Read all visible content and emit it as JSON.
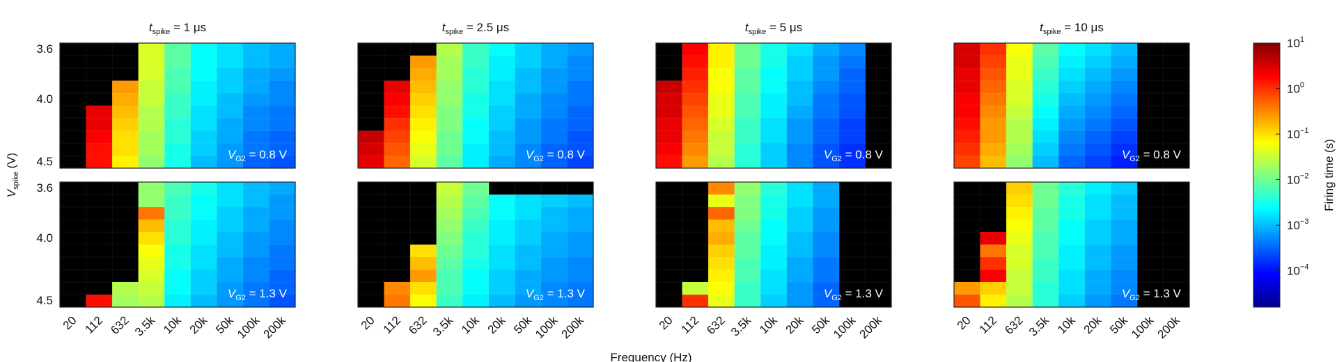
{
  "chart_data": {
    "type": "heatmap",
    "x_label": "Frequency (Hz)",
    "y_label_main": "V",
    "y_label_sub": "spike",
    "y_label_unit": " (V)",
    "x_categories": [
      "20",
      "112",
      "632",
      "3.5k",
      "10k",
      "20k",
      "50k",
      "100k",
      "200k"
    ],
    "y_tick_labels": [
      "3.6",
      "4.0",
      "4.5"
    ],
    "y_rows": 10,
    "column_titles": [
      {
        "main": "t",
        "sub": "spike",
        "rest": " = 1 μs"
      },
      {
        "main": "t",
        "sub": "spike",
        "rest": " = 2.5 μs"
      },
      {
        "main": "t",
        "sub": "spike",
        "rest": " = 5 μs"
      },
      {
        "main": "t",
        "sub": "spike",
        "rest": " = 10 μs"
      }
    ],
    "row_annotations": [
      {
        "main": "V",
        "sub": "G2",
        "rest": " = 0.8 V"
      },
      {
        "main": "V",
        "sub": "G2",
        "rest": " = 1.3 V"
      }
    ],
    "colorbar": {
      "label": "Firing time (s)",
      "scale": "log",
      "range_log10": [
        -4.8,
        1
      ],
      "ticks": [
        {
          "base": "10",
          "exp": "1"
        },
        {
          "base": "10",
          "exp": "0"
        },
        {
          "base": "10",
          "exp": "−1"
        },
        {
          "base": "10",
          "exp": "−2"
        },
        {
          "base": "10",
          "exp": "−3"
        },
        {
          "base": "10",
          "exp": "−4"
        }
      ],
      "tick_values_log10": [
        1,
        0,
        -1,
        -2,
        -3,
        -4
      ]
    },
    "panels_log10_firing_time": [
      [
        [
          null,
          null,
          null,
          -1.4,
          -2.1,
          -2.6,
          -2.8,
          -3.0,
          -3.1
        ],
        [
          null,
          null,
          null,
          -1.4,
          -2.1,
          -2.6,
          -2.8,
          -3.0,
          -3.1
        ],
        [
          null,
          null,
          null,
          -1.4,
          -2.2,
          -2.6,
          -2.9,
          -3.1,
          -3.2
        ],
        [
          null,
          null,
          -0.6,
          -1.5,
          -2.2,
          -2.7,
          -2.9,
          -3.1,
          -3.3
        ],
        [
          null,
          null,
          -0.7,
          -1.5,
          -2.3,
          -2.7,
          -3.0,
          -3.2,
          -3.3
        ],
        [
          null,
          0.4,
          -0.8,
          -1.6,
          -2.3,
          -2.8,
          -3.0,
          -3.3,
          -3.4
        ],
        [
          null,
          0.4,
          -0.9,
          -1.6,
          -2.4,
          -2.8,
          -3.1,
          -3.3,
          -3.4
        ],
        [
          null,
          0.3,
          -1.0,
          -1.7,
          -2.4,
          -2.9,
          -3.1,
          -3.4,
          -3.5
        ],
        [
          null,
          0.2,
          -1.0,
          -1.7,
          -2.5,
          -2.9,
          -3.2,
          -3.4,
          -3.5
        ],
        [
          null,
          0.2,
          -1.1,
          -1.8,
          -2.5,
          -3.0,
          -3.2,
          -3.5,
          -3.6
        ]
      ],
      [
        [
          null,
          null,
          null,
          -1.6,
          -2.3,
          -2.6,
          -2.9,
          -3.1,
          -3.2
        ],
        [
          null,
          null,
          -0.6,
          -1.7,
          -2.3,
          -2.7,
          -2.9,
          -3.1,
          -3.3
        ],
        [
          null,
          null,
          -0.7,
          -1.7,
          -2.4,
          -2.7,
          -3.0,
          -3.2,
          -3.3
        ],
        [
          null,
          0.4,
          -0.8,
          -1.8,
          -2.4,
          -2.8,
          -3.0,
          -3.2,
          -3.4
        ],
        [
          null,
          0.3,
          -0.9,
          -1.8,
          -2.5,
          -2.8,
          -3.1,
          -3.3,
          -3.4
        ],
        [
          null,
          0.2,
          -1.0,
          -1.9,
          -2.5,
          -2.9,
          -3.1,
          -3.3,
          -3.5
        ],
        [
          null,
          0.0,
          -1.1,
          -1.9,
          -2.6,
          -2.9,
          -3.2,
          -3.4,
          -3.5
        ],
        [
          0.6,
          -0.1,
          -1.2,
          -2.0,
          -2.6,
          -3.0,
          -3.2,
          -3.4,
          -3.6
        ],
        [
          0.5,
          -0.2,
          -1.3,
          -2.0,
          -2.7,
          -3.0,
          -3.3,
          -3.5,
          -3.6
        ],
        [
          0.4,
          -0.3,
          -1.4,
          -2.1,
          -2.7,
          -3.1,
          -3.3,
          -3.5,
          -3.7
        ]
      ],
      [
        [
          null,
          0.3,
          -1.1,
          -2.0,
          -2.5,
          -2.8,
          -3.1,
          -3.3,
          null
        ],
        [
          null,
          0.2,
          -1.1,
          -2.0,
          -2.5,
          -2.9,
          -3.2,
          -3.4,
          null
        ],
        [
          null,
          0.1,
          -1.2,
          -2.1,
          -2.6,
          -2.9,
          -3.2,
          -3.5,
          null
        ],
        [
          0.6,
          0.0,
          -1.2,
          -2.1,
          -2.6,
          -3.0,
          -3.3,
          -3.5,
          null
        ],
        [
          0.5,
          -0.1,
          -1.3,
          -2.2,
          -2.7,
          -3.0,
          -3.4,
          -3.6,
          null
        ],
        [
          0.5,
          -0.2,
          -1.3,
          -2.2,
          -2.7,
          -3.1,
          -3.4,
          -3.6,
          null
        ],
        [
          0.4,
          -0.3,
          -1.4,
          -2.3,
          -2.8,
          -3.2,
          -3.5,
          -3.7,
          null
        ],
        [
          0.4,
          -0.4,
          -1.5,
          -2.3,
          -2.8,
          -3.2,
          -3.5,
          -3.7,
          null
        ],
        [
          0.3,
          -0.5,
          -1.5,
          -2.4,
          -2.9,
          -3.3,
          -3.6,
          -3.8,
          null
        ],
        [
          0.2,
          -0.6,
          -1.6,
          -2.4,
          -2.9,
          -3.3,
          -3.6,
          -3.8,
          null
        ]
      ],
      [
        [
          0.5,
          0.0,
          -1.2,
          -2.1,
          -2.6,
          -2.8,
          -3.0,
          null,
          null
        ],
        [
          0.5,
          -0.1,
          -1.3,
          -2.2,
          -2.7,
          -2.9,
          -3.1,
          null,
          null
        ],
        [
          0.4,
          -0.2,
          -1.3,
          -2.3,
          -2.8,
          -3.0,
          -3.2,
          null,
          null
        ],
        [
          0.4,
          -0.3,
          -1.4,
          -2.4,
          -2.9,
          -3.1,
          -3.3,
          null,
          null
        ],
        [
          0.3,
          -0.4,
          -1.4,
          -2.5,
          -3.0,
          -3.2,
          -3.4,
          null,
          null
        ],
        [
          0.3,
          -0.5,
          -1.5,
          -2.6,
          -3.1,
          -3.3,
          -3.5,
          null,
          null
        ],
        [
          0.2,
          -0.6,
          -1.6,
          -2.7,
          -3.2,
          -3.4,
          -3.6,
          null,
          null
        ],
        [
          0.1,
          -0.6,
          -1.6,
          -2.8,
          -3.3,
          -3.5,
          -3.7,
          null,
          null
        ],
        [
          0.0,
          -0.7,
          -1.7,
          -2.9,
          -3.4,
          -3.6,
          -3.8,
          null,
          null
        ],
        [
          -0.1,
          -0.8,
          -1.8,
          -3.0,
          -3.5,
          -3.7,
          -3.9,
          null,
          null
        ]
      ],
      [
        [
          null,
          null,
          null,
          -1.8,
          -2.2,
          -2.5,
          -2.8,
          -3.0,
          -3.1
        ],
        [
          null,
          null,
          null,
          -1.8,
          -2.3,
          -2.6,
          -2.8,
          -3.0,
          -3.2
        ],
        [
          null,
          null,
          null,
          -0.4,
          -2.3,
          -2.6,
          -2.9,
          -3.1,
          -3.2
        ],
        [
          null,
          null,
          null,
          -0.8,
          -2.4,
          -2.7,
          -2.9,
          -3.1,
          -3.3
        ],
        [
          null,
          null,
          null,
          -1.0,
          -2.4,
          -2.7,
          -3.0,
          -3.2,
          -3.3
        ],
        [
          null,
          null,
          null,
          -1.2,
          -2.5,
          -2.8,
          -3.0,
          -3.2,
          -3.4
        ],
        [
          null,
          null,
          null,
          -1.3,
          -2.5,
          -2.8,
          -3.1,
          -3.3,
          -3.4
        ],
        [
          null,
          null,
          null,
          -1.4,
          -2.6,
          -2.9,
          -3.1,
          -3.3,
          -3.5
        ],
        [
          null,
          null,
          -1.6,
          -1.5,
          -2.6,
          -2.9,
          -3.2,
          -3.4,
          -3.5
        ],
        [
          null,
          0.2,
          -1.7,
          -1.6,
          -2.7,
          -3.0,
          -3.2,
          -3.4,
          -3.6
        ]
      ],
      [
        [
          null,
          null,
          null,
          -1.5,
          -2.0,
          null,
          null,
          null,
          null
        ],
        [
          null,
          null,
          null,
          -1.6,
          -2.1,
          -2.6,
          -2.8,
          -2.9,
          -3.0
        ],
        [
          null,
          null,
          null,
          -1.7,
          -2.2,
          -2.6,
          -2.8,
          -3.0,
          -3.1
        ],
        [
          null,
          null,
          null,
          -1.8,
          -2.3,
          -2.7,
          -2.9,
          -3.0,
          -3.1
        ],
        [
          null,
          null,
          null,
          -1.9,
          -2.4,
          -2.7,
          -2.9,
          -3.1,
          -3.2
        ],
        [
          null,
          null,
          -1.0,
          -2.0,
          -2.4,
          -2.8,
          -3.0,
          -3.1,
          -3.2
        ],
        [
          null,
          null,
          -0.8,
          -2.1,
          -2.5,
          -2.8,
          -3.0,
          -3.2,
          -3.3
        ],
        [
          null,
          null,
          -0.6,
          -2.2,
          -2.6,
          -2.9,
          -3.1,
          -3.2,
          -3.3
        ],
        [
          null,
          -0.5,
          -1.0,
          -2.2,
          -2.6,
          -2.9,
          -3.1,
          -3.3,
          -3.4
        ],
        [
          null,
          -0.4,
          -1.2,
          -2.3,
          -2.7,
          -3.0,
          -3.2,
          -3.3,
          -3.4
        ]
      ],
      [
        [
          null,
          null,
          -0.5,
          -1.8,
          -2.4,
          -2.8,
          -3.1,
          null,
          null
        ],
        [
          null,
          null,
          -1.3,
          -1.9,
          -2.5,
          -2.8,
          -3.1,
          null,
          null
        ],
        [
          null,
          null,
          -0.3,
          -1.9,
          -2.5,
          -2.9,
          -3.2,
          null,
          null
        ],
        [
          null,
          null,
          -0.8,
          -2.0,
          -2.6,
          -2.9,
          -3.2,
          null,
          null
        ],
        [
          null,
          null,
          -0.7,
          -2.1,
          -2.6,
          -3.0,
          -3.3,
          null,
          null
        ],
        [
          null,
          null,
          -0.9,
          -2.1,
          -2.7,
          -3.0,
          -3.3,
          null,
          null
        ],
        [
          null,
          null,
          -1.0,
          -2.2,
          -2.7,
          -3.1,
          -3.4,
          null,
          null
        ],
        [
          null,
          null,
          -1.1,
          -2.2,
          -2.8,
          -3.1,
          -3.4,
          null,
          null
        ],
        [
          null,
          -1.5,
          -1.2,
          -2.3,
          -2.8,
          -3.2,
          -3.5,
          null,
          null
        ],
        [
          null,
          0.0,
          -1.3,
          -2.3,
          -2.9,
          -3.2,
          -3.5,
          null,
          null
        ]
      ],
      [
        [
          null,
          null,
          -0.9,
          -2.0,
          -2.4,
          -2.7,
          -2.9,
          null,
          null
        ],
        [
          null,
          null,
          -1.0,
          -2.0,
          -2.5,
          -2.8,
          -3.0,
          null,
          null
        ],
        [
          null,
          null,
          -1.1,
          -2.1,
          -2.5,
          -2.8,
          -3.0,
          null,
          null
        ],
        [
          null,
          null,
          -1.2,
          -2.1,
          -2.6,
          -2.9,
          -3.1,
          null,
          null
        ],
        [
          null,
          0.4,
          -1.3,
          -2.2,
          -2.6,
          -2.9,
          -3.1,
          null,
          null
        ],
        [
          null,
          -0.4,
          -1.4,
          -2.2,
          -2.7,
          -3.0,
          -3.2,
          null,
          null
        ],
        [
          null,
          0.0,
          -1.4,
          -2.3,
          -2.7,
          -3.0,
          -3.2,
          null,
          null
        ],
        [
          null,
          0.3,
          -1.5,
          -2.3,
          -2.8,
          -3.1,
          -3.3,
          null,
          null
        ],
        [
          -0.6,
          -0.9,
          -1.5,
          -2.4,
          -2.8,
          -3.1,
          -3.3,
          null,
          null
        ],
        [
          -0.2,
          -1.1,
          -1.6,
          -2.4,
          -2.9,
          -3.2,
          -3.4,
          null,
          null
        ]
      ]
    ]
  }
}
